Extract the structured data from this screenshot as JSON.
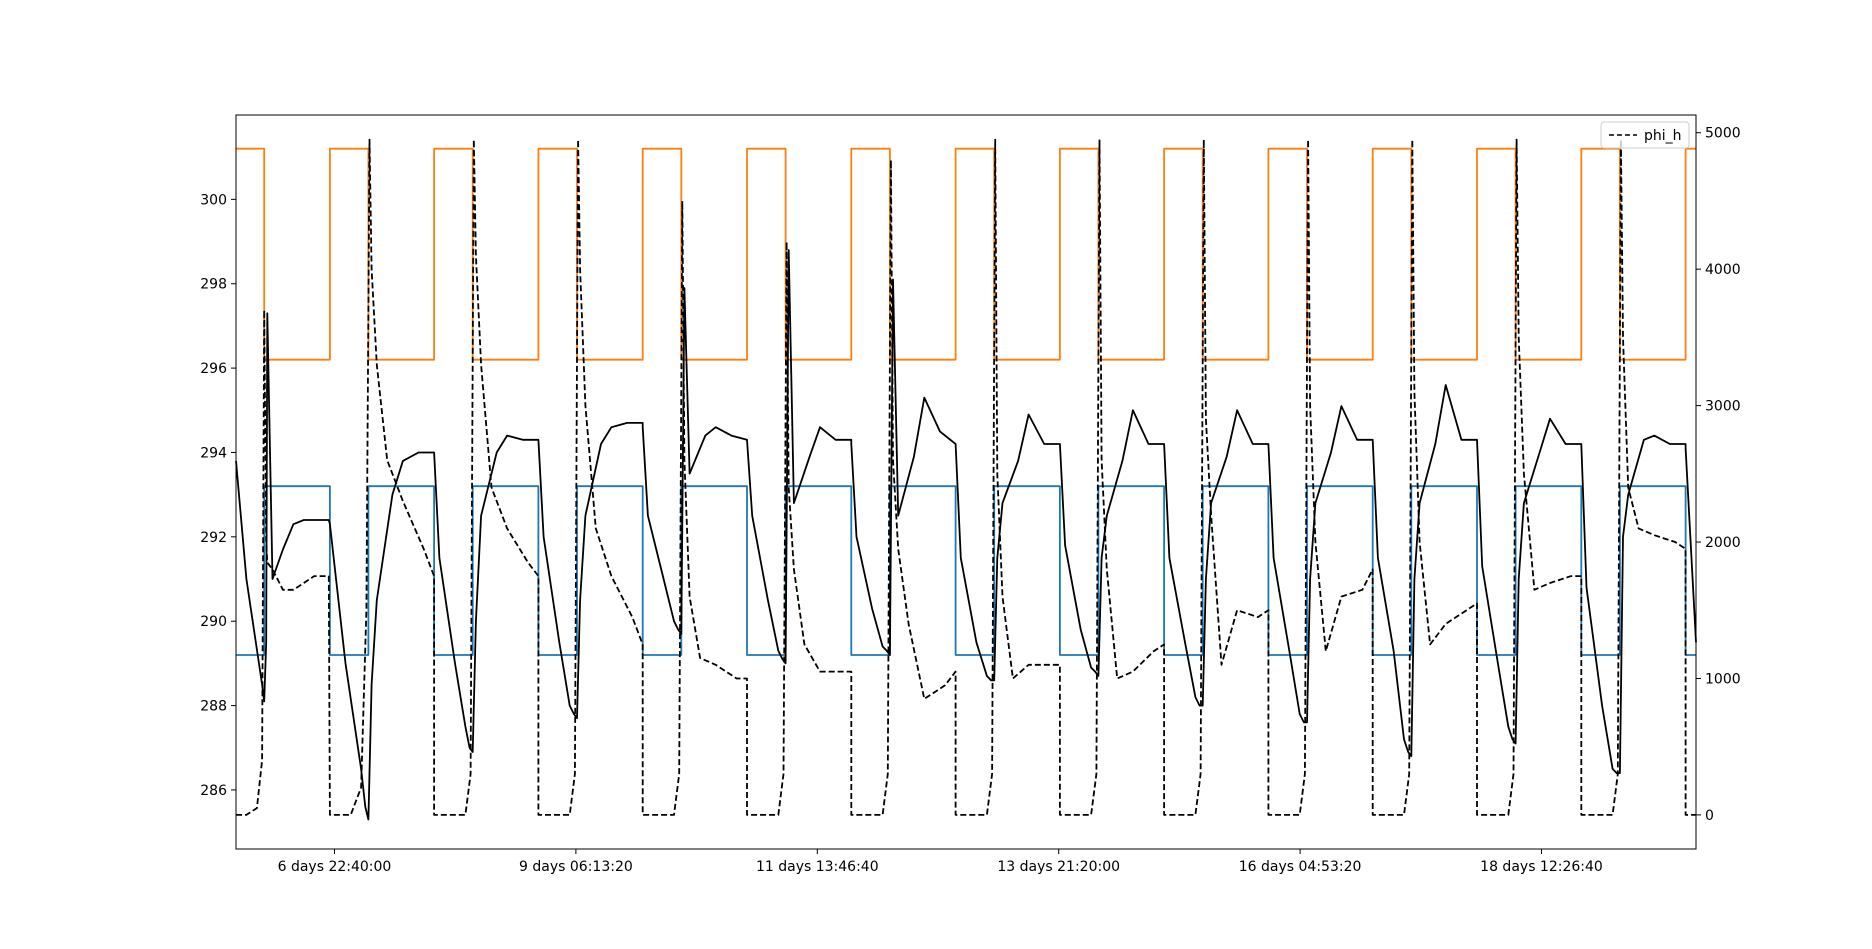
{
  "chart_data": {
    "type": "line",
    "title": "",
    "xlabel": "",
    "ylabel_left": "",
    "ylabel_right": "",
    "x_unit": "days",
    "x_tick_labels": [
      {
        "x": 6.9444,
        "label": "6 days 22:40:00"
      },
      {
        "x": 9.2593,
        "label": "9 days 06:13:20"
      },
      {
        "x": 11.5741,
        "label": "11 days 13:46:40"
      },
      {
        "x": 13.8889,
        "label": "13 days 21:20:00"
      },
      {
        "x": 16.2037,
        "label": "16 days 04:53:20"
      },
      {
        "x": 18.5185,
        "label": "18 days 12:26:40"
      }
    ],
    "xlim": [
      6.0,
      20.0
    ],
    "ylim_left": [
      284.6,
      302.0
    ],
    "yticks_left": [
      286,
      288,
      290,
      292,
      294,
      296,
      298,
      300
    ],
    "ylim_right": [
      -250,
      5130
    ],
    "yticks_right": [
      0,
      1000,
      2000,
      3000,
      4000,
      5000
    ],
    "legend": {
      "position": "top-right",
      "entries": [
        {
          "label": "phi_h",
          "style": "dashed",
          "color": "#000000"
        }
      ]
    },
    "grid": false,
    "series": [
      {
        "axis": "left",
        "color": "#ff7f0e",
        "style": "step",
        "legend": false,
        "x": [
          6.0,
          6.27,
          6.27,
          6.9,
          6.9,
          7.27,
          7.27,
          7.9,
          7.9,
          8.27,
          8.27,
          8.9,
          8.9,
          9.27,
          9.27,
          9.9,
          9.9,
          10.27,
          10.27,
          10.9,
          10.9,
          11.27,
          11.27,
          11.9,
          11.9,
          12.27,
          12.27,
          12.9,
          12.9,
          13.27,
          13.27,
          13.9,
          13.9,
          14.27,
          14.27,
          14.9,
          14.9,
          15.27,
          15.27,
          15.9,
          15.9,
          16.27,
          16.27,
          16.9,
          16.9,
          17.27,
          17.27,
          17.9,
          17.9,
          18.27,
          18.27,
          18.9,
          18.9,
          19.27,
          19.27,
          19.9,
          19.9,
          20.0
        ],
        "y": [
          301.2,
          301.2,
          296.2,
          296.2,
          301.2,
          301.2,
          296.2,
          296.2,
          301.2,
          301.2,
          296.2,
          296.2,
          301.2,
          301.2,
          296.2,
          296.2,
          301.2,
          301.2,
          296.2,
          296.2,
          301.2,
          301.2,
          296.2,
          296.2,
          301.2,
          301.2,
          296.2,
          296.2,
          301.2,
          301.2,
          296.2,
          296.2,
          301.2,
          301.2,
          296.2,
          296.2,
          301.2,
          301.2,
          296.2,
          296.2,
          301.2,
          301.2,
          296.2,
          296.2,
          301.2,
          301.2,
          296.2,
          296.2,
          301.2,
          301.2,
          296.2,
          296.2,
          301.2,
          301.2,
          296.2,
          296.2,
          301.2,
          301.2
        ]
      },
      {
        "axis": "left",
        "color": "#1f77b4",
        "style": "step",
        "legend": false,
        "x": [
          6.0,
          6.27,
          6.27,
          6.9,
          6.9,
          7.27,
          7.27,
          7.9,
          7.9,
          8.27,
          8.27,
          8.9,
          8.9,
          9.27,
          9.27,
          9.9,
          9.9,
          10.27,
          10.27,
          10.9,
          10.9,
          11.27,
          11.27,
          11.9,
          11.9,
          12.27,
          12.27,
          12.9,
          12.9,
          13.27,
          13.27,
          13.9,
          13.9,
          14.27,
          14.27,
          14.9,
          14.9,
          15.27,
          15.27,
          15.9,
          15.9,
          16.27,
          16.27,
          16.9,
          16.9,
          17.27,
          17.27,
          17.9,
          17.9,
          18.27,
          18.27,
          18.9,
          18.9,
          19.27,
          19.27,
          19.9,
          19.9,
          20.0
        ],
        "y": [
          289.2,
          289.2,
          293.2,
          293.2,
          289.2,
          289.2,
          293.2,
          293.2,
          289.2,
          289.2,
          293.2,
          293.2,
          289.2,
          289.2,
          293.2,
          293.2,
          289.2,
          289.2,
          293.2,
          293.2,
          289.2,
          289.2,
          293.2,
          293.2,
          289.2,
          289.2,
          293.2,
          293.2,
          289.2,
          289.2,
          293.2,
          293.2,
          289.2,
          289.2,
          293.2,
          293.2,
          289.2,
          289.2,
          293.2,
          293.2,
          289.2,
          289.2,
          293.2,
          293.2,
          289.2,
          289.2,
          293.2,
          293.2,
          289.2,
          289.2,
          293.2,
          293.2,
          289.2,
          289.2,
          293.2,
          293.2,
          289.2,
          289.2
        ]
      },
      {
        "axis": "left",
        "color": "#000000",
        "style": "solid",
        "legend": false,
        "x": [
          6.0,
          6.1,
          6.25,
          6.27,
          6.29,
          6.3,
          6.35,
          6.45,
          6.55,
          6.65,
          6.89,
          6.9,
          7.05,
          7.2,
          7.24,
          7.27,
          7.3,
          7.35,
          7.5,
          7.6,
          7.75,
          7.9,
          7.9,
          7.95,
          8.1,
          8.2,
          8.24,
          8.27,
          8.3,
          8.35,
          8.5,
          8.6,
          8.75,
          8.9,
          8.9,
          8.95,
          9.1,
          9.2,
          9.24,
          9.27,
          9.3,
          9.35,
          9.5,
          9.6,
          9.75,
          9.9,
          9.9,
          9.95,
          10.1,
          10.2,
          10.24,
          10.27,
          10.3,
          10.35,
          10.5,
          10.6,
          10.75,
          10.9,
          10.9,
          10.95,
          11.1,
          11.2,
          11.24,
          11.27,
          11.3,
          11.35,
          11.5,
          11.6,
          11.75,
          11.9,
          11.9,
          11.95,
          12.1,
          12.2,
          12.24,
          12.27,
          12.3,
          12.35,
          12.5,
          12.6,
          12.75,
          12.9,
          12.9,
          12.95,
          13.1,
          13.2,
          13.24,
          13.27,
          13.3,
          13.35,
          13.5,
          13.6,
          13.75,
          13.9,
          13.9,
          13.95,
          14.1,
          14.2,
          14.24,
          14.27,
          14.3,
          14.35,
          14.5,
          14.6,
          14.75,
          14.9,
          14.9,
          14.95,
          15.1,
          15.2,
          15.24,
          15.27,
          15.3,
          15.35,
          15.5,
          15.6,
          15.75,
          15.9,
          15.9,
          15.95,
          16.1,
          16.2,
          16.24,
          16.27,
          16.3,
          16.35,
          16.5,
          16.6,
          16.75,
          16.9,
          16.9,
          16.95,
          17.1,
          17.2,
          17.24,
          17.27,
          17.3,
          17.35,
          17.5,
          17.6,
          17.75,
          17.9,
          17.9,
          17.95,
          18.1,
          18.2,
          18.24,
          18.27,
          18.3,
          18.35,
          18.5,
          18.6,
          18.75,
          18.9,
          18.9,
          18.95,
          19.1,
          19.2,
          19.24,
          19.27,
          19.3,
          19.35,
          19.5,
          19.6,
          19.75,
          19.9,
          19.9,
          20.0
        ],
        "y": [
          293.8,
          291.0,
          288.5,
          288.1,
          289.5,
          297.3,
          291.0,
          291.7,
          292.3,
          292.4,
          292.4,
          292.3,
          289.0,
          286.5,
          285.6,
          285.3,
          288.5,
          290.5,
          293.0,
          293.8,
          294.0,
          294.0,
          294.0,
          291.5,
          289.0,
          287.5,
          287.0,
          286.9,
          290.0,
          292.5,
          294.0,
          294.4,
          294.3,
          294.3,
          294.3,
          292.0,
          289.5,
          288.0,
          287.8,
          287.7,
          290.5,
          292.5,
          294.2,
          294.6,
          294.7,
          294.7,
          294.6,
          292.5,
          291.0,
          290.0,
          289.8,
          289.7,
          297.9,
          293.5,
          294.4,
          294.6,
          294.4,
          294.3,
          294.3,
          292.5,
          290.5,
          289.3,
          289.1,
          289.0,
          298.8,
          292.8,
          293.9,
          294.6,
          294.3,
          294.3,
          294.2,
          292.0,
          290.3,
          289.4,
          289.3,
          289.2,
          298.1,
          292.5,
          293.9,
          295.3,
          294.5,
          294.2,
          294.2,
          291.5,
          289.5,
          288.7,
          288.6,
          288.6,
          291.5,
          292.8,
          293.8,
          294.9,
          294.2,
          294.2,
          294.2,
          291.8,
          289.8,
          288.9,
          288.8,
          288.7,
          291.5,
          292.5,
          293.8,
          295.0,
          294.2,
          294.2,
          294.2,
          291.5,
          289.5,
          288.2,
          288.0,
          288.0,
          291.0,
          292.8,
          293.9,
          295.0,
          294.2,
          294.2,
          294.2,
          291.5,
          289.3,
          287.8,
          287.6,
          287.6,
          291.0,
          292.8,
          294.0,
          295.1,
          294.3,
          294.3,
          294.3,
          291.5,
          289.3,
          287.2,
          286.9,
          286.8,
          291.0,
          292.8,
          294.2,
          295.6,
          294.3,
          294.3,
          294.3,
          291.3,
          289.0,
          287.5,
          287.2,
          287.1,
          291.0,
          292.8,
          294.0,
          294.8,
          294.2,
          294.2,
          294.2,
          290.8,
          288.0,
          286.5,
          286.4,
          286.4,
          292.0,
          293.0,
          294.3,
          294.4,
          294.2,
          294.2,
          294.1,
          289.5
        ]
      },
      {
        "axis": "right",
        "color": "#000000",
        "style": "dashed",
        "legend": true,
        "name": "phi_h",
        "x": [
          6.0,
          6.1,
          6.2,
          6.25,
          6.27,
          6.29,
          6.3,
          6.35,
          6.45,
          6.55,
          6.65,
          6.75,
          6.89,
          6.9,
          6.9,
          7.1,
          7.2,
          7.25,
          7.28,
          7.3,
          7.35,
          7.45,
          7.6,
          7.8,
          7.9,
          7.9,
          8.1,
          8.2,
          8.25,
          8.28,
          8.3,
          8.35,
          8.45,
          8.6,
          8.8,
          8.9,
          8.9,
          9.1,
          9.2,
          9.25,
          9.28,
          9.3,
          9.35,
          9.45,
          9.6,
          9.8,
          9.9,
          9.9,
          10.1,
          10.2,
          10.25,
          10.28,
          10.3,
          10.35,
          10.45,
          10.6,
          10.8,
          10.9,
          10.9,
          11.1,
          11.2,
          11.25,
          11.28,
          11.3,
          11.35,
          11.45,
          11.6,
          11.8,
          11.9,
          11.9,
          12.1,
          12.2,
          12.25,
          12.28,
          12.3,
          12.35,
          12.45,
          12.6,
          12.8,
          12.9,
          12.9,
          13.1,
          13.2,
          13.25,
          13.28,
          13.3,
          13.35,
          13.45,
          13.6,
          13.8,
          13.9,
          13.9,
          14.1,
          14.2,
          14.25,
          14.28,
          14.3,
          14.35,
          14.45,
          14.6,
          14.8,
          14.9,
          14.9,
          15.1,
          15.2,
          15.25,
          15.28,
          15.3,
          15.35,
          15.45,
          15.6,
          15.8,
          15.9,
          15.9,
          16.1,
          16.2,
          16.25,
          16.28,
          16.3,
          16.35,
          16.45,
          16.6,
          16.8,
          16.9,
          16.9,
          17.1,
          17.2,
          17.25,
          17.28,
          17.3,
          17.35,
          17.45,
          17.6,
          17.8,
          17.9,
          17.9,
          18.1,
          18.2,
          18.25,
          18.28,
          18.3,
          18.35,
          18.45,
          18.6,
          18.8,
          18.9,
          18.9,
          19.1,
          19.2,
          19.25,
          19.28,
          19.3,
          19.35,
          19.45,
          19.6,
          19.8,
          19.9,
          19.9,
          20.0
        ],
        "y": [
          0,
          0,
          50,
          400,
          3700,
          2000,
          1850,
          1800,
          1650,
          1650,
          1700,
          1750,
          1750,
          0,
          0,
          0,
          200,
          1500,
          4950,
          4000,
          3300,
          2600,
          2300,
          1950,
          1750,
          0,
          0,
          0,
          300,
          4950,
          4100,
          3300,
          2400,
          2100,
          1850,
          1750,
          0,
          0,
          0,
          300,
          4950,
          4000,
          3000,
          2100,
          1750,
          1450,
          1250,
          0,
          0,
          0,
          300,
          4500,
          2600,
          1600,
          1150,
          1100,
          1000,
          1000,
          0,
          0,
          0,
          300,
          4200,
          2400,
          1800,
          1250,
          1050,
          1050,
          1050,
          0,
          0,
          0,
          300,
          4800,
          2600,
          1950,
          1400,
          850,
          950,
          1050,
          0,
          0,
          0,
          300,
          4950,
          2500,
          1600,
          1000,
          1100,
          1100,
          1100,
          0,
          0,
          0,
          300,
          4950,
          2600,
          1800,
          1000,
          1050,
          1200,
          1250,
          0,
          0,
          0,
          300,
          4950,
          2900,
          2200,
          1100,
          1500,
          1450,
          1500,
          0,
          0,
          0,
          300,
          4950,
          3000,
          2000,
          1200,
          1600,
          1650,
          1800,
          0,
          0,
          0,
          300,
          4950,
          3100,
          2000,
          1250,
          1400,
          1500,
          1550,
          0,
          0,
          0,
          300,
          4950,
          3500,
          2500,
          1650,
          1700,
          1750,
          1750,
          0,
          0,
          0,
          300,
          4950,
          3500,
          2400,
          2100,
          2050,
          2000,
          1950,
          0,
          0
        ]
      }
    ]
  }
}
